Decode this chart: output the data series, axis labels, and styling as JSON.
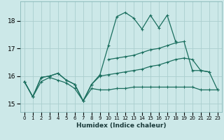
{
  "xlabel": "Humidex (Indice chaleur)",
  "bg_color": "#cce8e8",
  "grid_color": "#aacece",
  "line_color": "#1a6e5e",
  "ylim": [
    14.7,
    18.7
  ],
  "yticks": [
    15,
    16,
    17,
    18
  ],
  "xlim": [
    -0.5,
    23.5
  ],
  "xticks": [
    0,
    1,
    2,
    3,
    4,
    5,
    6,
    7,
    8,
    9,
    10,
    11,
    12,
    13,
    14,
    15,
    16,
    17,
    18,
    19,
    20,
    21,
    22,
    23
  ],
  "y_max": [
    15.8,
    15.25,
    15.95,
    16.0,
    16.1,
    15.85,
    15.7,
    15.1,
    15.7,
    16.05,
    17.1,
    18.15,
    18.3,
    18.1,
    17.7,
    18.2,
    17.75,
    18.2,
    17.25,
    null,
    null,
    null,
    null,
    null
  ],
  "y_mean": [
    null,
    null,
    null,
    null,
    null,
    null,
    null,
    null,
    null,
    null,
    16.6,
    16.65,
    16.7,
    16.75,
    16.85,
    16.95,
    17.0,
    17.1,
    17.2,
    17.25,
    16.2,
    16.2,
    16.15,
    null
  ],
  "y_min": [
    15.8,
    15.25,
    15.8,
    15.95,
    15.85,
    15.75,
    15.55,
    15.1,
    15.55,
    15.5,
    15.5,
    15.55,
    15.55,
    15.6,
    15.6,
    15.6,
    15.6,
    15.6,
    15.6,
    15.6,
    15.6,
    15.5,
    15.5,
    15.5
  ],
  "y_rise": [
    15.8,
    15.25,
    15.95,
    16.0,
    16.1,
    15.85,
    15.7,
    15.1,
    15.7,
    16.0,
    16.05,
    16.1,
    16.15,
    16.2,
    16.25,
    16.35,
    16.4,
    16.5,
    16.6,
    16.65,
    16.6,
    16.2,
    16.15,
    15.5
  ]
}
